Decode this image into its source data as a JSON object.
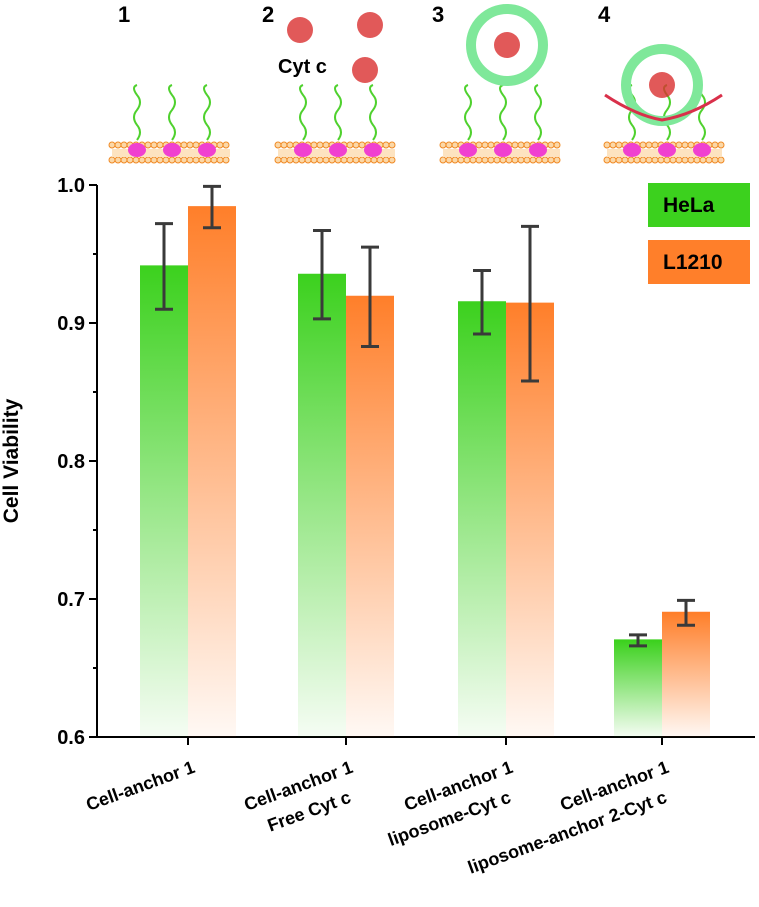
{
  "chart_data": {
    "type": "bar",
    "ylabel": "Cell Viability",
    "categories": [
      [
        "Cell-anchor 1"
      ],
      [
        "Cell-anchor 1",
        "Free Cyt c"
      ],
      [
        "Cell-anchor 1",
        "liposome-Cyt c"
      ],
      [
        "Cell-anchor 1",
        "liposome-anchor 2-Cyt c"
      ]
    ],
    "series": [
      {
        "name": "HeLa",
        "color": "#3cd11e",
        "values": [
          0.941,
          0.935,
          0.915,
          0.67
        ],
        "errors": [
          0.031,
          0.032,
          0.023,
          0.004
        ]
      },
      {
        "name": "L1210",
        "color": "#ff7f2a",
        "values": [
          0.984,
          0.919,
          0.914,
          0.69
        ],
        "errors": [
          0.015,
          0.036,
          0.056,
          0.009
        ]
      }
    ],
    "ylim": [
      0.6,
      1.0
    ],
    "yticks": [
      0.6,
      0.7,
      0.8,
      0.9,
      {
        "value": 1.0,
        "label": "1.0"
      }
    ],
    "legend": "upper right",
    "annotations": [
      "1",
      "2",
      "3",
      "4",
      "Cyt c"
    ]
  }
}
